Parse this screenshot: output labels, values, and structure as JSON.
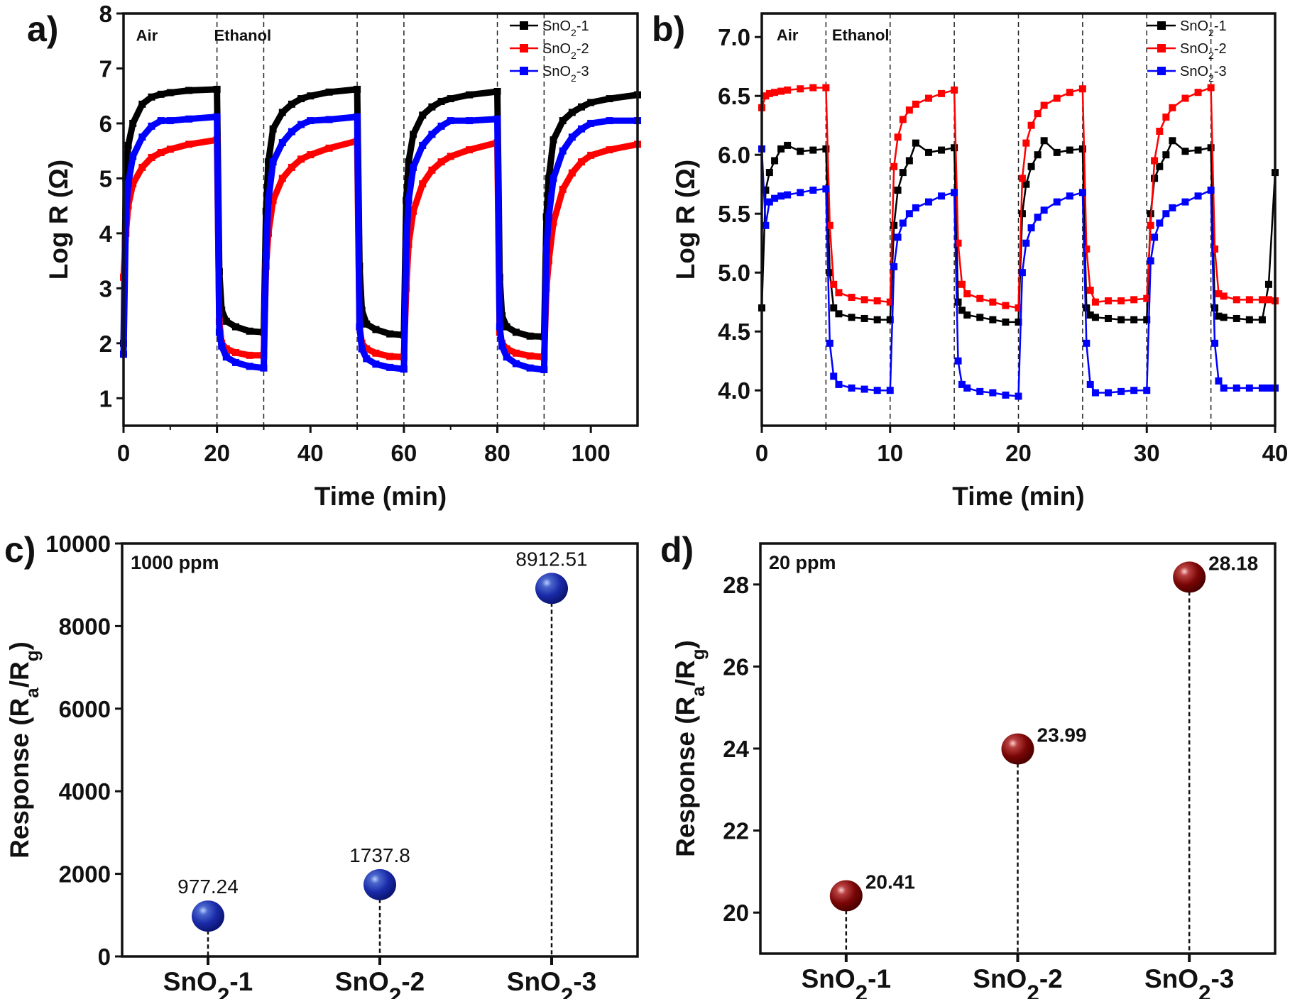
{
  "chart_data": [
    {
      "panel": "a)",
      "type": "line",
      "xlabel": "Time (min)",
      "ylabel": "Log R (Ω)",
      "xlim": [
        0,
        110
      ],
      "ylim": [
        0.5,
        8
      ],
      "xticks": [
        0,
        20,
        40,
        60,
        80,
        100
      ],
      "yticks": [
        1,
        2,
        3,
        4,
        5,
        6,
        7,
        8
      ],
      "switch_times": [
        20,
        30,
        50,
        60,
        80,
        90
      ],
      "annotations": [
        {
          "text": "Air",
          "x": 5,
          "y": 7.5
        },
        {
          "text": "Ethanol",
          "x": 25.5,
          "y": 7.5
        }
      ],
      "legend": "top-right",
      "x": [
        0,
        0.5,
        1,
        2,
        4,
        6,
        8,
        10,
        14,
        20,
        20.5,
        21,
        22,
        24,
        27,
        30,
        30.5,
        31,
        32,
        34,
        36,
        38,
        40,
        44,
        50,
        50.5,
        51,
        52,
        54,
        57,
        60,
        60.5,
        61,
        62,
        64,
        66,
        68,
        70,
        74,
        80,
        80.5,
        81,
        82,
        84,
        87,
        90,
        90.5,
        91,
        92,
        94,
        96,
        98,
        100,
        104,
        110
      ],
      "series": [
        {
          "name": "SnO2-1",
          "color": "#000000",
          "values": [
            2.0,
            5.0,
            5.6,
            6.0,
            6.35,
            6.48,
            6.53,
            6.56,
            6.6,
            6.62,
            3.3,
            2.6,
            2.4,
            2.3,
            2.22,
            2.2,
            4.4,
            5.3,
            5.9,
            6.2,
            6.35,
            6.45,
            6.5,
            6.57,
            6.62,
            3.4,
            2.6,
            2.35,
            2.25,
            2.17,
            2.15,
            4.6,
            5.3,
            5.8,
            6.15,
            6.3,
            6.4,
            6.45,
            6.52,
            6.58,
            3.2,
            2.5,
            2.3,
            2.2,
            2.13,
            2.12,
            4.3,
            5.0,
            5.7,
            6.05,
            6.2,
            6.3,
            6.38,
            6.45,
            6.52
          ]
        },
        {
          "name": "SnO2-2",
          "color": "#ff0000",
          "values": [
            3.2,
            4.0,
            4.5,
            4.9,
            5.2,
            5.38,
            5.47,
            5.53,
            5.62,
            5.7,
            2.4,
            2.0,
            1.9,
            1.83,
            1.78,
            1.78,
            3.4,
            4.0,
            4.6,
            5.0,
            5.2,
            5.35,
            5.43,
            5.55,
            5.68,
            2.3,
            2.0,
            1.9,
            1.82,
            1.76,
            1.75,
            3.0,
            3.8,
            4.4,
            4.9,
            5.15,
            5.3,
            5.4,
            5.52,
            5.65,
            2.2,
            2.0,
            1.9,
            1.82,
            1.77,
            1.75,
            3.0,
            3.5,
            4.2,
            4.8,
            5.1,
            5.3,
            5.42,
            5.52,
            5.62
          ]
        },
        {
          "name": "SnO2-3",
          "color": "#0000ff",
          "values": [
            1.8,
            4.3,
            4.9,
            5.4,
            5.75,
            5.95,
            6.05,
            6.05,
            6.08,
            6.12,
            2.2,
            1.95,
            1.75,
            1.65,
            1.58,
            1.55,
            3.6,
            4.6,
            5.3,
            5.65,
            5.85,
            5.98,
            6.05,
            6.07,
            6.12,
            2.3,
            1.9,
            1.72,
            1.62,
            1.56,
            1.53,
            3.8,
            4.6,
            5.2,
            5.6,
            5.8,
            5.95,
            6.05,
            6.05,
            6.08,
            2.3,
            1.95,
            1.75,
            1.63,
            1.55,
            1.52,
            3.7,
            4.3,
            5.0,
            5.5,
            5.75,
            5.9,
            6.0,
            6.05,
            6.05
          ]
        }
      ]
    },
    {
      "panel": "b)",
      "type": "line",
      "xlabel": "Time (min)",
      "ylabel": "Log R (Ω)",
      "xlim": [
        0,
        40
      ],
      "ylim": [
        3.7,
        7.2
      ],
      "xticks": [
        0,
        10,
        20,
        30,
        40
      ],
      "yticks": [
        "4.0",
        "4.5",
        "5.0",
        "5.5",
        "6.0",
        "6.5",
        "7.0"
      ],
      "switch_times": [
        5,
        10,
        15,
        20,
        25,
        30,
        35
      ],
      "annotations": [
        {
          "text": "Air",
          "x": 2,
          "y": 6.97
        },
        {
          "text": "Ethanol",
          "x": 7.7,
          "y": 6.97
        }
      ],
      "legend": "top-right",
      "x": [
        0,
        0.3,
        0.6,
        1,
        1.5,
        2,
        3,
        4,
        5,
        5.3,
        5.6,
        6,
        7,
        8,
        9,
        10,
        10.3,
        10.6,
        11,
        11.5,
        12,
        13,
        14,
        15,
        15.3,
        15.6,
        16,
        17,
        18,
        19,
        20,
        20.3,
        20.6,
        21,
        21.5,
        22,
        23,
        24,
        25,
        25.3,
        25.6,
        26,
        27,
        28,
        29,
        30,
        30.3,
        30.6,
        31,
        31.5,
        32,
        33,
        34,
        35,
        35.3,
        35.6,
        36,
        37,
        38,
        39,
        39.5,
        40
      ],
      "series": [
        {
          "name": "SnO2-1",
          "color": "#000000",
          "values": [
            4.7,
            5.7,
            5.85,
            5.95,
            6.05,
            6.08,
            6.03,
            6.04,
            6.05,
            5.0,
            4.7,
            4.65,
            4.62,
            4.61,
            4.6,
            4.6,
            5.4,
            5.7,
            5.85,
            5.95,
            6.1,
            6.02,
            6.04,
            6.06,
            4.75,
            4.68,
            4.64,
            4.62,
            4.6,
            4.58,
            4.58,
            5.5,
            5.75,
            5.9,
            6.0,
            6.12,
            6.02,
            6.04,
            6.05,
            4.7,
            4.64,
            4.62,
            4.61,
            4.6,
            4.6,
            4.6,
            5.5,
            5.8,
            5.9,
            6.0,
            6.12,
            6.03,
            6.04,
            6.06,
            4.7,
            4.63,
            4.62,
            4.61,
            4.6,
            4.6,
            4.9,
            5.85
          ]
        },
        {
          "name": "SnO2-2",
          "color": "#ff0000",
          "values": [
            6.4,
            6.5,
            6.52,
            6.53,
            6.54,
            6.55,
            6.56,
            6.57,
            6.57,
            5.4,
            4.9,
            4.83,
            4.79,
            4.77,
            4.76,
            4.75,
            5.9,
            6.15,
            6.3,
            6.38,
            6.43,
            6.48,
            6.52,
            6.55,
            5.25,
            4.9,
            4.82,
            4.78,
            4.75,
            4.72,
            4.7,
            5.8,
            6.1,
            6.25,
            6.35,
            6.42,
            6.48,
            6.53,
            6.56,
            5.2,
            4.85,
            4.75,
            4.76,
            4.76,
            4.77,
            4.78,
            5.4,
            5.95,
            6.2,
            6.32,
            6.4,
            6.48,
            6.53,
            6.57,
            5.2,
            4.82,
            4.8,
            4.77,
            4.77,
            4.77,
            4.77,
            4.76
          ]
        },
        {
          "name": "SnO2-3",
          "color": "#0000ff",
          "values": [
            6.05,
            5.4,
            5.6,
            5.63,
            5.65,
            5.66,
            5.68,
            5.7,
            5.71,
            4.4,
            4.12,
            4.05,
            4.02,
            4.01,
            4.0,
            4.0,
            5.05,
            5.3,
            5.42,
            5.5,
            5.55,
            5.6,
            5.65,
            5.68,
            4.25,
            4.05,
            4.02,
            3.99,
            3.98,
            3.96,
            3.95,
            5.0,
            5.25,
            5.38,
            5.47,
            5.53,
            5.6,
            5.65,
            5.68,
            4.4,
            4.05,
            3.98,
            3.98,
            3.99,
            4.0,
            4.0,
            5.1,
            5.3,
            5.42,
            5.5,
            5.55,
            5.6,
            5.65,
            5.7,
            4.4,
            4.08,
            4.02,
            4.02,
            4.02,
            4.02,
            4.02,
            4.02
          ]
        }
      ]
    },
    {
      "panel": "c)",
      "type": "scatter",
      "annotation": "1000 ppm",
      "ylabel": "Response (Ra/Rg)",
      "ylim": [
        0,
        10000
      ],
      "yticks": [
        0,
        2000,
        4000,
        6000,
        8000,
        10000
      ],
      "categories": [
        "SnO2-1",
        "SnO2-2",
        "SnO2-3"
      ],
      "values": [
        977.24,
        1737.8,
        8912.51
      ],
      "labels": [
        "977.24",
        "1737.8",
        "8912.51"
      ],
      "color": "#1a2aa8"
    },
    {
      "panel": "d)",
      "type": "scatter",
      "annotation": "20 ppm",
      "ylabel": "Response (Ra/Rg)",
      "ylim": [
        19,
        29
      ],
      "yticks": [
        20,
        22,
        24,
        26,
        28
      ],
      "categories": [
        "SnO2-1",
        "SnO2-2",
        "SnO2-3"
      ],
      "values": [
        20.41,
        23.99,
        28.18
      ],
      "labels": [
        "20.41",
        "23.99",
        "28.18"
      ],
      "color": "#7a0606"
    }
  ]
}
